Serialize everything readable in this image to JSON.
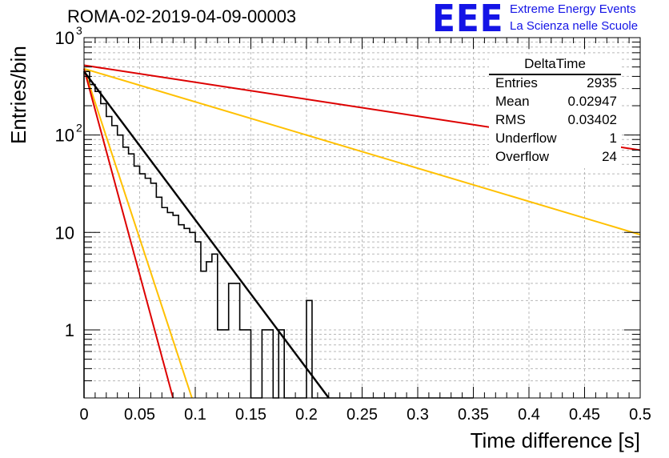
{
  "chart_data": {
    "type": "line",
    "title": "ROMA-02-2019-04-09-00003",
    "xlabel": "Time difference [s]",
    "ylabel": "Entries/bin",
    "xlim": [
      0,
      0.5
    ],
    "ylim": [
      0.2,
      1000
    ],
    "yscale": "log",
    "grid": true,
    "x_ticks": [
      "0",
      "0.05",
      "0.1",
      "0.15",
      "0.2",
      "0.25",
      "0.3",
      "0.35",
      "0.4",
      "0.45",
      "0.5"
    ],
    "y_ticks": [
      {
        "value": 1,
        "label": "1"
      },
      {
        "value": 10,
        "label": "10"
      },
      {
        "value": 100,
        "label": "10",
        "exp": "2"
      },
      {
        "value": 1000,
        "label": "10",
        "exp": "3"
      }
    ],
    "histogram": {
      "name": "DeltaTime",
      "bin_width": 0.005,
      "values": [
        450,
        330,
        280,
        210,
        155,
        125,
        100,
        75,
        64,
        48,
        40,
        36,
        32,
        23,
        18,
        16,
        15,
        12,
        11,
        10,
        8,
        4,
        5,
        6,
        1,
        1,
        3,
        3,
        1,
        1,
        0,
        0,
        1,
        1,
        0,
        1,
        0,
        0,
        0,
        0,
        2,
        0,
        0,
        0,
        0,
        0,
        0,
        0,
        0,
        0,
        0,
        0,
        0,
        0,
        0,
        0,
        0,
        0,
        0,
        0,
        0,
        0,
        0,
        0,
        0,
        0,
        0,
        0,
        0,
        0
      ]
    },
    "series": [
      {
        "color": "#000000",
        "points": [
          [
            0.0,
            450
          ],
          [
            0.22,
            0.2
          ]
        ]
      },
      {
        "color": "#dd0000",
        "points": [
          [
            0.0,
            520
          ],
          [
            0.5,
            70
          ]
        ]
      },
      {
        "color": "#ffc000",
        "points": [
          [
            0.0,
            480
          ],
          [
            0.5,
            9.5
          ]
        ]
      },
      {
        "color": "#ffc000",
        "points": [
          [
            0.0,
            480
          ],
          [
            0.097,
            0.2
          ]
        ]
      },
      {
        "color": "#dd0000",
        "points": [
          [
            0.0,
            480
          ],
          [
            0.08,
            0.2
          ]
        ]
      }
    ],
    "stats_box": {
      "title": "DeltaTime",
      "rows": [
        {
          "key": "Entries",
          "value": "2935"
        },
        {
          "key": "Mean",
          "value": "0.02947"
        },
        {
          "key": "RMS",
          "value": "0.03402"
        },
        {
          "key": "Underflow",
          "value": "1"
        },
        {
          "key": "Overflow",
          "value": "24"
        }
      ]
    }
  },
  "logo": {
    "text": "EEE",
    "line1": "Extreme Energy Events",
    "line2": "La Scienza nelle Scuole",
    "color": "#1414e6"
  }
}
